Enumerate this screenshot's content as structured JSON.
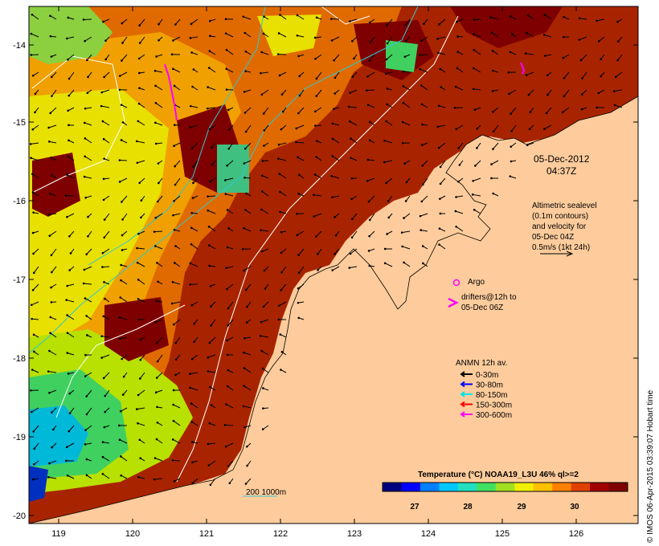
{
  "map": {
    "lon_ticks": [
      "119",
      "120",
      "121",
      "122",
      "123",
      "124",
      "125",
      "126"
    ],
    "lat_ticks": [
      "-14",
      "-15",
      "-16",
      "-17",
      "-18",
      "-19",
      "-20"
    ]
  },
  "annotations": {
    "date": "05-Dec-2012",
    "time": "04:37Z",
    "altimetry": [
      "Altimetric sealevel",
      "(0.1m contours)",
      "and velocity for",
      "05-Dec 04Z",
      "0.5m/s (1kt 24h)"
    ],
    "argo_label": "Argo",
    "drifters": [
      "drifters@12h to",
      "05-Dec 06Z"
    ],
    "anmn_title": "ANMN 12h av.",
    "depth_legend": [
      {
        "label": "0-30m",
        "color": "#000000"
      },
      {
        "label": "30-80m",
        "color": "#0000ff"
      },
      {
        "label": "80-150m",
        "color": "#00e5e5"
      },
      {
        "label": "150-300m",
        "color": "#ff0000"
      },
      {
        "label": "300-600m",
        "color": "#ff00ff"
      }
    ],
    "isobath_label": "200  1000m"
  },
  "colorbar": {
    "title": "Temperature (°C) NOAA19_L3U 46% ql>=2",
    "ticks": [
      "27",
      "28",
      "29",
      "30"
    ],
    "colors": [
      "#00007f",
      "#0000ff",
      "#0080ff",
      "#00c8ff",
      "#20e0c0",
      "#40e060",
      "#a0e020",
      "#f0f000",
      "#ffc000",
      "#ff8000",
      "#e04000",
      "#a00000",
      "#7f0000"
    ]
  },
  "credit": "© IMOS 06-Apr-2015 03:39:07 Hobart time"
}
